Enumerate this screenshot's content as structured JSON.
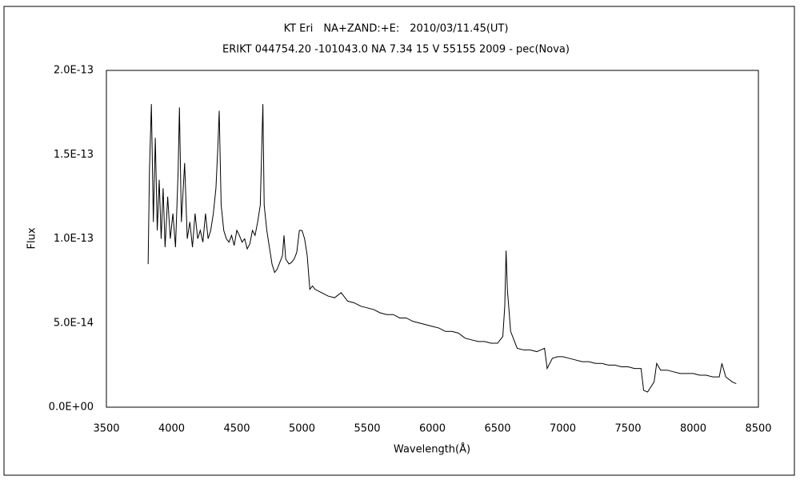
{
  "chart_data": {
    "type": "line",
    "title": "KT Eri　NA+ZAND:+E:　2010/03/11.45(UT)",
    "subtitle": "ERIKT 044754.20 -101043.0 NA 7.34 15 V 55155 2009 - pec(Nova)",
    "x_label": "Wavelength(Å)",
    "y_label": "Flux",
    "xlim": [
      3500,
      8500
    ],
    "xticks": [
      3500,
      4000,
      4500,
      5000,
      5500,
      6000,
      6500,
      7000,
      7500,
      8000,
      8500
    ],
    "ylim": [
      0,
      2e-13
    ],
    "yticks": [
      {
        "value": 0,
        "label": "0.0E+00"
      },
      {
        "value": 5e-14,
        "label": "5.0E-14"
      },
      {
        "value": 1e-13,
        "label": "1.0E-13"
      },
      {
        "value": 1.5e-13,
        "label": "1.5E-13"
      },
      {
        "value": 2e-13,
        "label": "2.0E-13"
      }
    ],
    "grid": false,
    "series": [
      {
        "color": "#000000",
        "x": [
          3820,
          3830,
          3845,
          3860,
          3875,
          3890,
          3905,
          3920,
          3935,
          3950,
          3970,
          3990,
          4010,
          4030,
          4050,
          4060,
          4075,
          4100,
          4120,
          4140,
          4160,
          4180,
          4200,
          4220,
          4240,
          4260,
          4280,
          4300,
          4320,
          4340,
          4355,
          4365,
          4380,
          4400,
          4420,
          4440,
          4460,
          4480,
          4500,
          4520,
          4540,
          4560,
          4580,
          4600,
          4620,
          4640,
          4660,
          4680,
          4690,
          4700,
          4710,
          4730,
          4750,
          4770,
          4790,
          4810,
          4830,
          4850,
          4862,
          4875,
          4900,
          4920,
          4940,
          4960,
          4980,
          5000,
          5020,
          5040,
          5060,
          5080,
          5100,
          5150,
          5200,
          5250,
          5300,
          5350,
          5400,
          5450,
          5500,
          5550,
          5600,
          5650,
          5700,
          5750,
          5800,
          5850,
          5900,
          5950,
          6000,
          6050,
          6100,
          6150,
          6200,
          6250,
          6300,
          6350,
          6400,
          6450,
          6500,
          6540,
          6555,
          6565,
          6575,
          6600,
          6650,
          6700,
          6750,
          6800,
          6860,
          6880,
          6920,
          6960,
          7000,
          7050,
          7100,
          7150,
          7200,
          7250,
          7300,
          7350,
          7400,
          7450,
          7500,
          7550,
          7600,
          7620,
          7650,
          7700,
          7720,
          7750,
          7800,
          7850,
          7900,
          7950,
          8000,
          8050,
          8100,
          8150,
          8200,
          8220,
          8250,
          8300,
          8330
        ],
        "values": [
          8.5e-14,
          1.4e-13,
          1.8e-13,
          1.1e-13,
          1.6e-13,
          1.05e-13,
          1.35e-13,
          1e-13,
          1.3e-13,
          9.5e-14,
          1.25e-13,
          1e-13,
          1.15e-13,
          9.5e-14,
          1.4e-13,
          1.78e-13,
          1.1e-13,
          1.45e-13,
          1e-13,
          1.1e-13,
          9.5e-14,
          1.15e-13,
          1e-13,
          1.05e-13,
          9.8e-14,
          1.15e-13,
          1e-13,
          1.05e-13,
          1.15e-13,
          1.3e-13,
          1.55e-13,
          1.76e-13,
          1.2e-13,
          1.05e-13,
          1e-13,
          9.8e-14,
          1.02e-13,
          9.6e-14,
          1.05e-13,
          1.02e-13,
          9.8e-14,
          1e-13,
          9.4e-14,
          9.7e-14,
          1.05e-13,
          1.02e-13,
          1.1e-13,
          1.2e-13,
          1.5e-13,
          1.8e-13,
          1.2e-13,
          1.05e-13,
          9.5e-14,
          8.5e-14,
          8e-14,
          8.2e-14,
          8.6e-14,
          9e-14,
          1.02e-13,
          8.8e-14,
          8.5e-14,
          8.6e-14,
          8.8e-14,
          9.2e-14,
          1.05e-13,
          1.05e-13,
          1e-13,
          9e-14,
          7e-14,
          7.2e-14,
          7e-14,
          6.8e-14,
          6.6e-14,
          6.5e-14,
          6.8e-14,
          6.3e-14,
          6.2e-14,
          6e-14,
          5.9e-14,
          5.8e-14,
          5.6e-14,
          5.5e-14,
          5.5e-14,
          5.3e-14,
          5.3e-14,
          5.1e-14,
          5e-14,
          4.9e-14,
          4.8e-14,
          4.7e-14,
          4.5e-14,
          4.5e-14,
          4.4e-14,
          4.1e-14,
          4e-14,
          3.9e-14,
          3.9e-14,
          3.8e-14,
          3.8e-14,
          4.2e-14,
          6e-14,
          9.3e-14,
          7e-14,
          4.5e-14,
          3.5e-14,
          3.4e-14,
          3.4e-14,
          3.3e-14,
          3.5e-14,
          2.3e-14,
          2.9e-14,
          3e-14,
          3e-14,
          2.9e-14,
          2.8e-14,
          2.7e-14,
          2.7e-14,
          2.6e-14,
          2.6e-14,
          2.5e-14,
          2.5e-14,
          2.4e-14,
          2.4e-14,
          2.3e-14,
          2.3e-14,
          1e-14,
          9e-15,
          1.5e-14,
          2.6e-14,
          2.2e-14,
          2.2e-14,
          2.1e-14,
          2e-14,
          2e-14,
          2e-14,
          1.9e-14,
          1.9e-14,
          1.8e-14,
          1.8e-14,
          2.6e-14,
          1.8e-14,
          1.5e-14,
          1.4e-14
        ]
      }
    ]
  }
}
